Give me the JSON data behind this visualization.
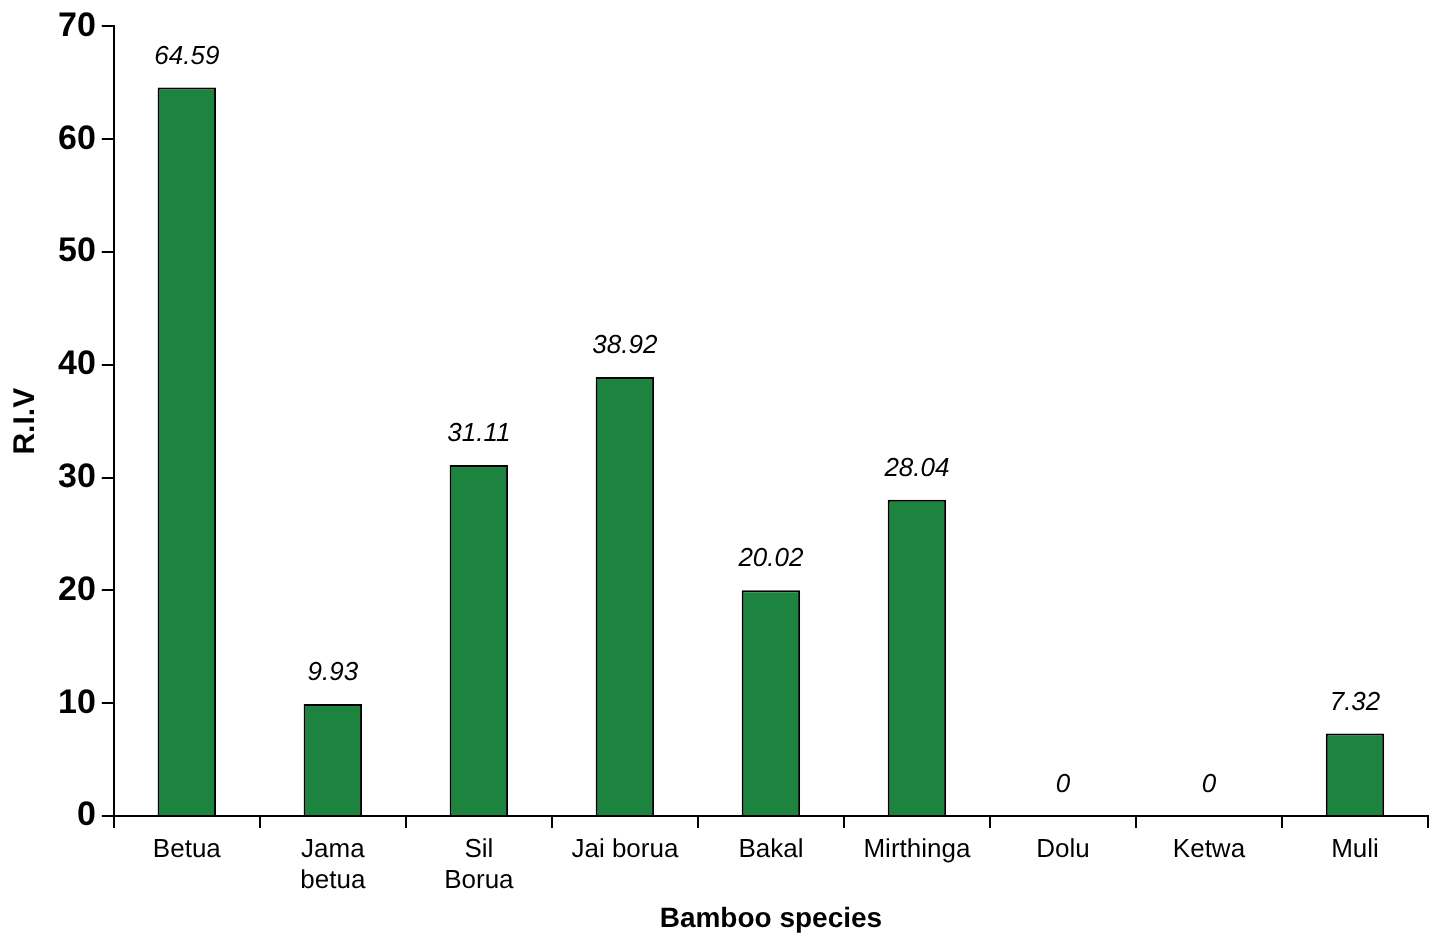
{
  "chart_data": {
    "type": "bar",
    "xlabel": "Bamboo species",
    "ylabel": "R.I.V",
    "categories": [
      "Betua",
      "Jama\nbetua",
      "Sil\nBorua",
      "Jai borua",
      "Bakal",
      "Mirthinga",
      "Dolu",
      "Ketwa",
      "Muli"
    ],
    "values": [
      64.59,
      9.93,
      31.11,
      38.92,
      20.02,
      28.04,
      0,
      0,
      7.32
    ],
    "color": "#1c843f",
    "ylim": [
      0,
      70
    ],
    "yticks": [
      0,
      10,
      20,
      30,
      40,
      50,
      60,
      70
    ],
    "grid": false,
    "legend": false,
    "data_labels": true
  }
}
